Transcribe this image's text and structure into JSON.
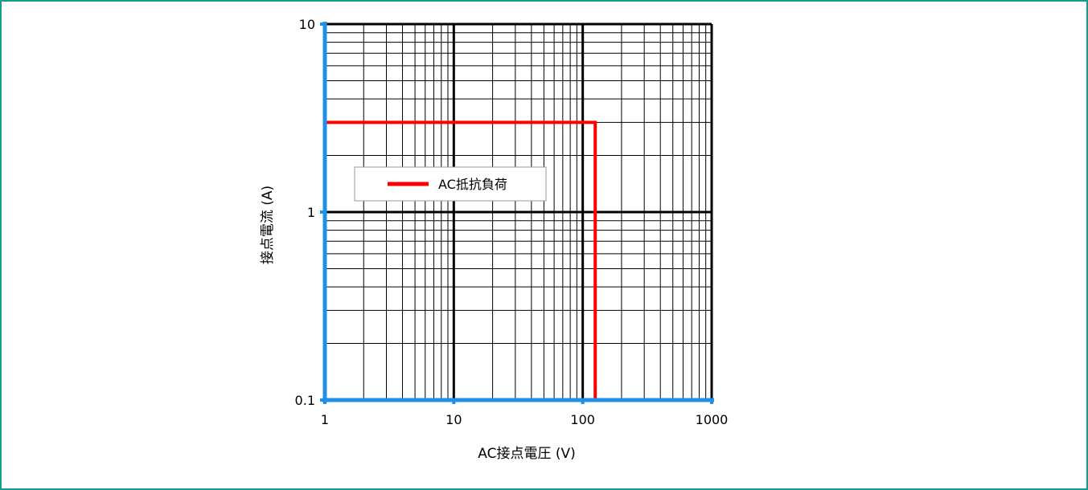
{
  "chart_data": {
    "type": "line",
    "xlabel": "AC接点電圧 (V)",
    "ylabel": "接点電流 (A)",
    "x_scale": "log",
    "y_scale": "log",
    "xlim": [
      1,
      1000
    ],
    "ylim": [
      0.1,
      10
    ],
    "x_ticks": [
      "1",
      "10",
      "100",
      "1000"
    ],
    "y_ticks": [
      "0.1",
      "1",
      "10"
    ],
    "grid": true,
    "legend_position": "center-left",
    "series": [
      {
        "name": "AC抵抗負荷",
        "color": "#ff0000",
        "x": [
          1,
          125,
          125
        ],
        "y": [
          3,
          3,
          0.1
        ]
      }
    ]
  },
  "colors": {
    "frame_border": "#149c8f",
    "axis": "#1e90e8",
    "grid": "#000000"
  }
}
